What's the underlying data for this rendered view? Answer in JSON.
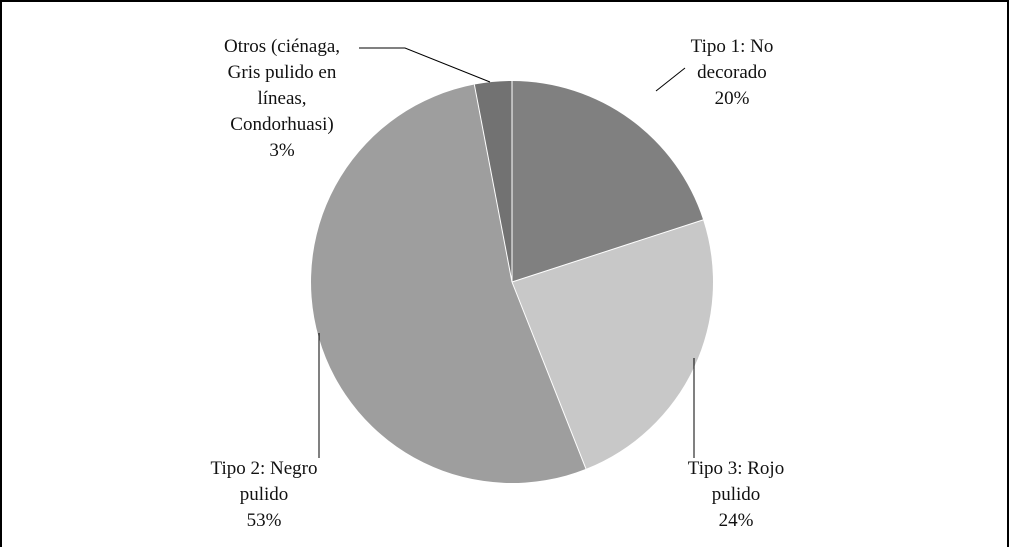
{
  "chart_data": {
    "type": "pie",
    "title": "",
    "start_angle_deg": 0,
    "direction": "clockwise",
    "slices": [
      {
        "lines": [
          "Tipo 1: No",
          "decorado"
        ],
        "percent_label": "20%",
        "value": 20,
        "color": "#808080"
      },
      {
        "lines": [
          "Tipo 3: Rojo",
          "pulido"
        ],
        "percent_label": "24%",
        "value": 24,
        "color": "#c8c8c8"
      },
      {
        "lines": [
          "Tipo 2: Negro",
          "pulido"
        ],
        "percent_label": "53%",
        "value": 53,
        "color": "#9e9e9e"
      },
      {
        "lines": [
          "Otros (ciénaga,",
          "Gris pulido en",
          "líneas,",
          "Condorhuasi)"
        ],
        "percent_label": "3%",
        "value": 3,
        "color": "#727272"
      }
    ]
  }
}
